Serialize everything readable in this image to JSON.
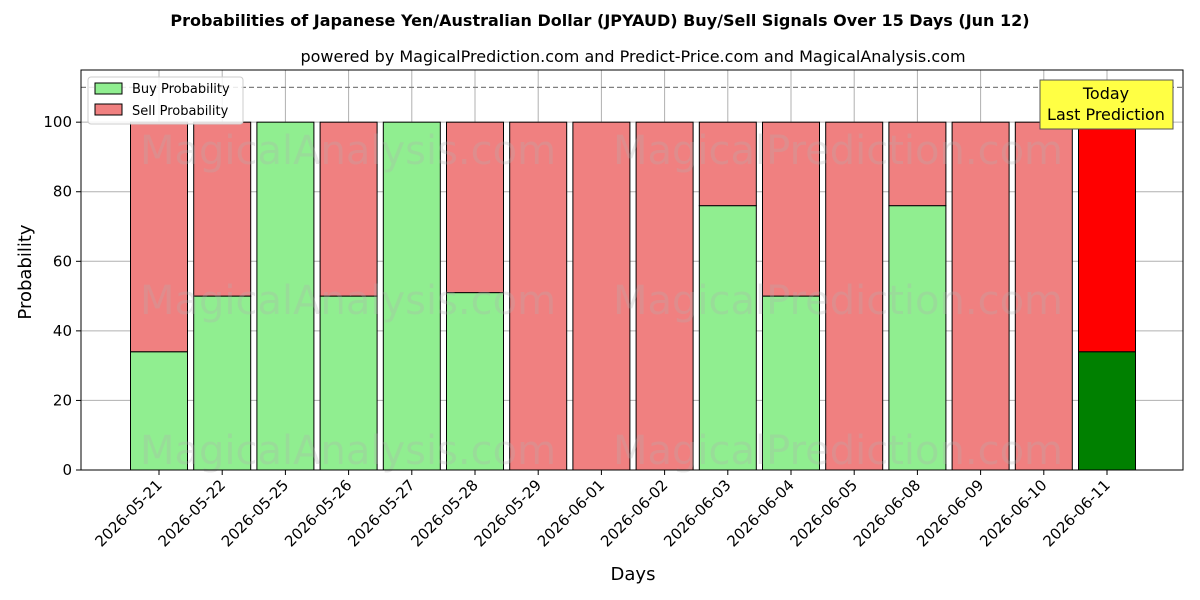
{
  "chart_data": {
    "type": "bar",
    "stacked": true,
    "title": "Probabilities of Japanese Yen/Australian Dollar (JPYAUD) Buy/Sell Signals Over 15 Days (Jun 12)",
    "subtitle": "powered by MagicalPrediction.com and Predict-Price.com and MagicalAnalysis.com",
    "xlabel": "Days",
    "ylabel": "Probability",
    "ylim": [
      0,
      115
    ],
    "yticks": [
      0,
      20,
      40,
      60,
      80,
      100
    ],
    "reference_line": 110,
    "grid": true,
    "legend_position": "top-left",
    "categories": [
      "2026-05-21",
      "2026-05-22",
      "2026-05-25",
      "2026-05-26",
      "2026-05-27",
      "2026-05-28",
      "2026-05-29",
      "2026-06-01",
      "2026-06-02",
      "2026-06-03",
      "2026-06-04",
      "2026-06-05",
      "2026-06-08",
      "2026-06-09",
      "2026-06-10",
      "2026-06-11"
    ],
    "series": [
      {
        "name": "Buy Probability",
        "color": "#90ee90",
        "values": [
          34,
          50,
          100,
          50,
          100,
          51,
          0,
          0,
          0,
          76,
          50,
          0,
          76,
          0,
          0,
          34
        ]
      },
      {
        "name": "Sell Probability",
        "color": "#f08080",
        "values": [
          66,
          50,
          0,
          50,
          0,
          49,
          100,
          100,
          100,
          24,
          50,
          100,
          24,
          100,
          100,
          66
        ]
      }
    ],
    "highlight": {
      "index": 15,
      "buy_color": "#008000",
      "sell_color": "#ff0000"
    },
    "annotation": {
      "line1": "Today",
      "line2": "Last Prediction",
      "background": "#ffff44"
    },
    "watermarks": [
      "MagicalAnalysis.com",
      "MagicalPrediction.com"
    ]
  }
}
